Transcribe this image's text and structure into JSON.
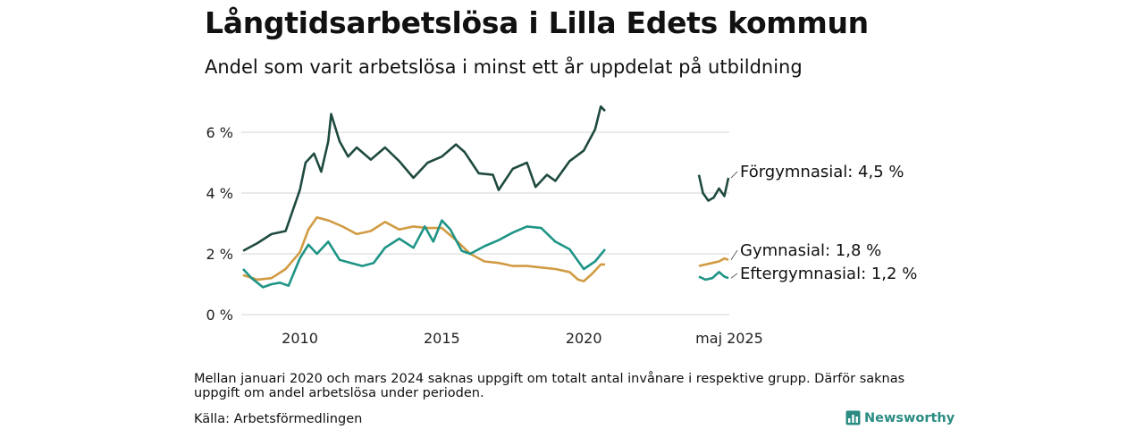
{
  "title": "Långtidsarbetslösa i Lilla Edets kommun",
  "subtitle": "Andel som varit arbetslösa i minst ett år uppdelat på utbildning",
  "note": "Mellan januari 2020 och mars 2024 saknas uppgift om totalt antal invånare i respektive grupp. Därför saknas uppgift om andel arbetslösa under perioden.",
  "source": "Källa: Arbetsförmedlingen",
  "brand": "Newsworthy",
  "colors": {
    "forgymnasial": "#1f4a40",
    "gymnasial": "#d19b43",
    "eftergymnasial": "#1e9486",
    "grid": "#dddddd",
    "brand": "#2a8c82"
  },
  "chart_data": {
    "type": "line",
    "title": "Långtidsarbetslösa i Lilla Edets kommun",
    "ylabel": "",
    "ylim": [
      0,
      7
    ],
    "yticks": [
      0,
      2,
      4,
      6
    ],
    "ytick_labels": [
      "0 %",
      "2 %",
      "4 %",
      "6 %"
    ],
    "xticks": [
      2010,
      2015,
      2020
    ],
    "xtick_labels": [
      "2010",
      "2015",
      "2020"
    ],
    "recent_label": "maj 2025",
    "grid": true,
    "series": [
      {
        "name": "Förgymnasial",
        "label": "Förgymnasial: 4,5 %",
        "x": [
          2008.0,
          2008.5,
          2009.0,
          2009.5,
          2010.0,
          2010.2,
          2010.5,
          2010.75,
          2011.0,
          2011.1,
          2011.4,
          2011.7,
          2012.0,
          2012.5,
          2013.0,
          2013.5,
          2014.0,
          2014.5,
          2015.0,
          2015.5,
          2015.8,
          2016.3,
          2016.8,
          2017.0,
          2017.5,
          2018.0,
          2018.3,
          2018.7,
          2019.0,
          2019.5,
          2020.0,
          2020.4,
          2020.6,
          2020.75
        ],
        "y": [
          2.1,
          2.35,
          2.65,
          2.75,
          4.1,
          5.0,
          5.3,
          4.7,
          5.7,
          6.6,
          5.7,
          5.2,
          5.5,
          5.1,
          5.5,
          5.05,
          4.5,
          5.0,
          5.2,
          5.6,
          5.35,
          4.65,
          4.6,
          4.1,
          4.8,
          5.0,
          4.2,
          4.6,
          4.4,
          5.05,
          5.4,
          6.1,
          6.85,
          6.7
        ],
        "recent_x": [
          2024.25,
          2024.4,
          2024.6,
          2024.8,
          2025.0,
          2025.2,
          2025.35
        ],
        "recent_y": [
          4.6,
          4.0,
          3.75,
          3.85,
          4.15,
          3.9,
          4.5
        ]
      },
      {
        "name": "Gymnasial",
        "label": "Gymnasial: 1,8 %",
        "x": [
          2008.0,
          2008.5,
          2009.0,
          2009.5,
          2010.0,
          2010.3,
          2010.6,
          2011.0,
          2011.5,
          2012.0,
          2012.5,
          2013.0,
          2013.5,
          2014.0,
          2014.5,
          2015.0,
          2015.5,
          2016.0,
          2016.5,
          2017.0,
          2017.5,
          2018.0,
          2018.5,
          2019.0,
          2019.5,
          2019.8,
          2020.0,
          2020.3,
          2020.6,
          2020.75
        ],
        "y": [
          1.3,
          1.15,
          1.2,
          1.5,
          2.05,
          2.8,
          3.2,
          3.1,
          2.9,
          2.65,
          2.75,
          3.05,
          2.8,
          2.9,
          2.85,
          2.85,
          2.45,
          2.0,
          1.75,
          1.7,
          1.6,
          1.6,
          1.55,
          1.5,
          1.4,
          1.15,
          1.1,
          1.35,
          1.65,
          1.65
        ],
        "recent_x": [
          2024.25,
          2024.5,
          2024.75,
          2025.0,
          2025.2,
          2025.35
        ],
        "recent_y": [
          1.6,
          1.65,
          1.7,
          1.75,
          1.85,
          1.8
        ]
      },
      {
        "name": "Eftergymnasial",
        "label": "Eftergymnasial: 1,2 %",
        "x": [
          2008.0,
          2008.3,
          2008.7,
          2009.0,
          2009.3,
          2009.6,
          2010.0,
          2010.3,
          2010.6,
          2011.0,
          2011.4,
          2011.8,
          2012.2,
          2012.6,
          2013.0,
          2013.5,
          2014.0,
          2014.4,
          2014.7,
          2015.0,
          2015.3,
          2015.7,
          2016.0,
          2016.5,
          2017.0,
          2017.5,
          2018.0,
          2018.5,
          2019.0,
          2019.5,
          2020.0,
          2020.4,
          2020.75
        ],
        "y": [
          1.5,
          1.2,
          0.9,
          1.0,
          1.05,
          0.95,
          1.85,
          2.3,
          2.0,
          2.4,
          1.8,
          1.7,
          1.6,
          1.7,
          2.2,
          2.5,
          2.2,
          2.9,
          2.4,
          3.1,
          2.8,
          2.1,
          2.0,
          2.25,
          2.45,
          2.7,
          2.9,
          2.85,
          2.4,
          2.15,
          1.5,
          1.75,
          2.15
        ],
        "recent_x": [
          2024.25,
          2024.5,
          2024.75,
          2025.0,
          2025.2,
          2025.35
        ],
        "recent_y": [
          1.25,
          1.15,
          1.2,
          1.4,
          1.25,
          1.2
        ]
      }
    ]
  }
}
